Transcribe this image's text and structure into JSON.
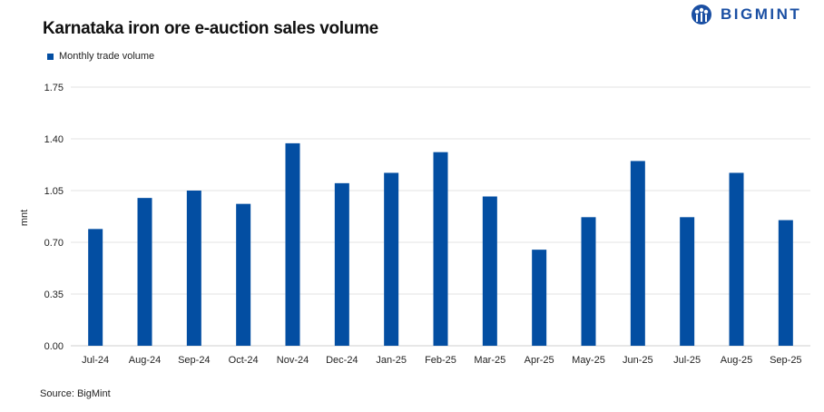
{
  "logo": {
    "text": "BIGMINT"
  },
  "source": "Source: BigMint",
  "chart_data": {
    "type": "bar",
    "title": "Karnataka iron ore e-auction sales volume",
    "xlabel": "",
    "ylabel": "mnt",
    "ylim": [
      0,
      1.75
    ],
    "yticks": [
      "0.00",
      "0.35",
      "0.70",
      "1.05",
      "1.40",
      "1.75"
    ],
    "grid": true,
    "legend_placement": "top-left",
    "categories": [
      "Jul-24",
      "Aug-24",
      "Sep-24",
      "Oct-24",
      "Nov-24",
      "Dec-24",
      "Jan-25",
      "Feb-25",
      "Mar-25",
      "Apr-25",
      "May-25",
      "Jun-25",
      "Jul-25",
      "Aug-25",
      "Sep-25"
    ],
    "series": [
      {
        "name": "Monthly trade volume",
        "color": "#034ea2",
        "values": [
          0.79,
          1.0,
          1.05,
          0.96,
          1.37,
          1.1,
          1.17,
          1.31,
          1.01,
          0.65,
          0.87,
          1.25,
          0.87,
          1.17,
          0.85
        ]
      }
    ]
  }
}
